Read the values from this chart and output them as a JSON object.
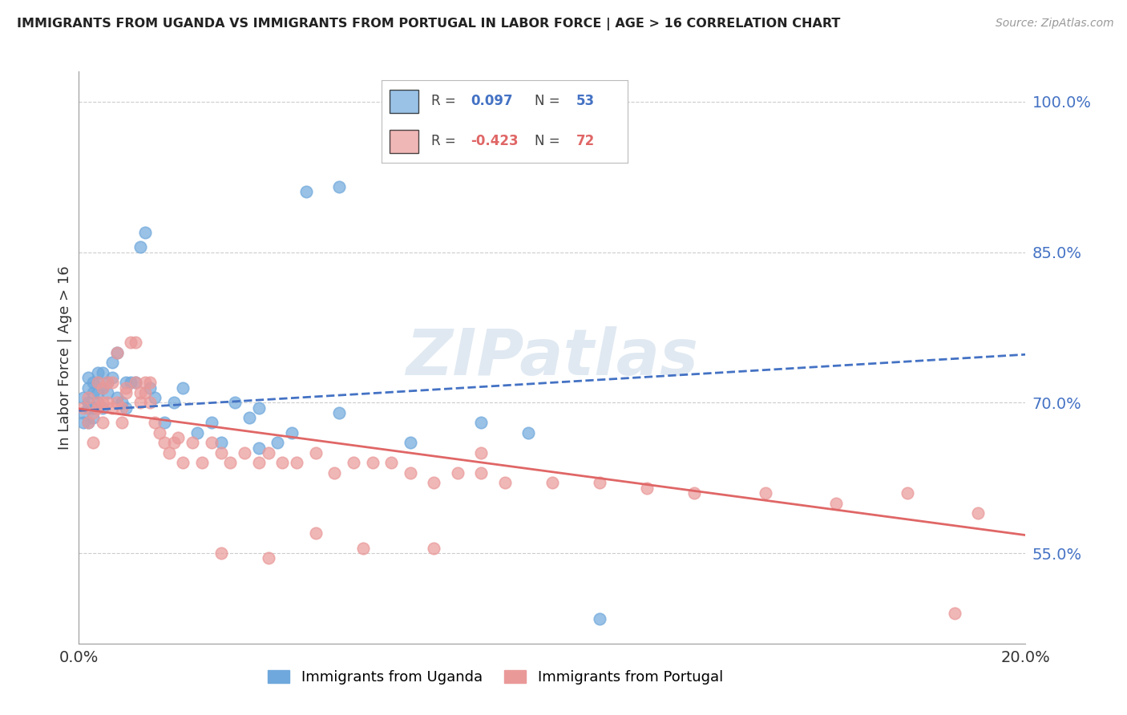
{
  "title": "IMMIGRANTS FROM UGANDA VS IMMIGRANTS FROM PORTUGAL IN LABOR FORCE | AGE > 16 CORRELATION CHART",
  "source": "Source: ZipAtlas.com",
  "ylabel": "In Labor Force | Age > 16",
  "xlim": [
    0.0,
    0.2
  ],
  "ylim": [
    0.46,
    1.03
  ],
  "yticks": [
    0.55,
    0.7,
    0.85,
    1.0
  ],
  "ytick_labels": [
    "55.0%",
    "70.0%",
    "85.0%",
    "100.0%"
  ],
  "xticks": [
    0.0,
    0.05,
    0.1,
    0.15,
    0.2
  ],
  "xtick_labels": [
    "0.0%",
    "",
    "",
    "",
    "20.0%"
  ],
  "uganda_color": "#6fa8dc",
  "portugal_color": "#ea9999",
  "uganda_line_color": "#4472c4",
  "portugal_line_color": "#e06666",
  "watermark": "ZIPatlas",
  "uganda_x": [
    0.001,
    0.001,
    0.001,
    0.002,
    0.002,
    0.002,
    0.002,
    0.002,
    0.003,
    0.003,
    0.003,
    0.003,
    0.004,
    0.004,
    0.004,
    0.004,
    0.005,
    0.005,
    0.005,
    0.006,
    0.006,
    0.007,
    0.007,
    0.008,
    0.008,
    0.009,
    0.01,
    0.01,
    0.011,
    0.012,
    0.013,
    0.014,
    0.015,
    0.016,
    0.018,
    0.02,
    0.022,
    0.025,
    0.028,
    0.03,
    0.033,
    0.036,
    0.038,
    0.042,
    0.048,
    0.055,
    0.07,
    0.085,
    0.095,
    0.11,
    0.038,
    0.045,
    0.055
  ],
  "uganda_y": [
    0.69,
    0.705,
    0.68,
    0.695,
    0.715,
    0.725,
    0.7,
    0.68,
    0.72,
    0.71,
    0.695,
    0.685,
    0.73,
    0.72,
    0.71,
    0.7,
    0.695,
    0.715,
    0.73,
    0.72,
    0.71,
    0.74,
    0.725,
    0.75,
    0.705,
    0.7,
    0.72,
    0.695,
    0.72,
    0.72,
    0.855,
    0.87,
    0.715,
    0.705,
    0.68,
    0.7,
    0.715,
    0.67,
    0.68,
    0.66,
    0.7,
    0.685,
    0.695,
    0.66,
    0.91,
    0.915,
    0.66,
    0.68,
    0.67,
    0.485,
    0.655,
    0.67,
    0.69
  ],
  "portugal_x": [
    0.001,
    0.002,
    0.002,
    0.003,
    0.003,
    0.004,
    0.004,
    0.004,
    0.005,
    0.005,
    0.005,
    0.006,
    0.006,
    0.007,
    0.007,
    0.008,
    0.008,
    0.009,
    0.009,
    0.01,
    0.01,
    0.011,
    0.012,
    0.012,
    0.013,
    0.013,
    0.014,
    0.014,
    0.015,
    0.015,
    0.016,
    0.017,
    0.018,
    0.019,
    0.02,
    0.021,
    0.022,
    0.024,
    0.026,
    0.028,
    0.03,
    0.032,
    0.035,
    0.038,
    0.04,
    0.043,
    0.046,
    0.05,
    0.054,
    0.058,
    0.062,
    0.066,
    0.07,
    0.075,
    0.08,
    0.085,
    0.09,
    0.1,
    0.11,
    0.12,
    0.13,
    0.145,
    0.16,
    0.175,
    0.19,
    0.03,
    0.04,
    0.05,
    0.06,
    0.075,
    0.085,
    0.185
  ],
  "portugal_y": [
    0.695,
    0.68,
    0.705,
    0.66,
    0.69,
    0.7,
    0.72,
    0.695,
    0.68,
    0.7,
    0.715,
    0.72,
    0.7,
    0.695,
    0.72,
    0.7,
    0.75,
    0.68,
    0.695,
    0.71,
    0.715,
    0.76,
    0.76,
    0.72,
    0.71,
    0.7,
    0.72,
    0.71,
    0.72,
    0.7,
    0.68,
    0.67,
    0.66,
    0.65,
    0.66,
    0.665,
    0.64,
    0.66,
    0.64,
    0.66,
    0.65,
    0.64,
    0.65,
    0.64,
    0.65,
    0.64,
    0.64,
    0.65,
    0.63,
    0.64,
    0.64,
    0.64,
    0.63,
    0.62,
    0.63,
    0.63,
    0.62,
    0.62,
    0.62,
    0.615,
    0.61,
    0.61,
    0.6,
    0.61,
    0.59,
    0.55,
    0.545,
    0.57,
    0.555,
    0.555,
    0.65,
    0.49
  ],
  "uganda_trend_x0": 0.0,
  "uganda_trend_x1": 0.2,
  "uganda_trend_y0": 0.692,
  "uganda_trend_y1": 0.748,
  "portugal_trend_x0": 0.0,
  "portugal_trend_x1": 0.2,
  "portugal_trend_y0": 0.694,
  "portugal_trend_y1": 0.568
}
